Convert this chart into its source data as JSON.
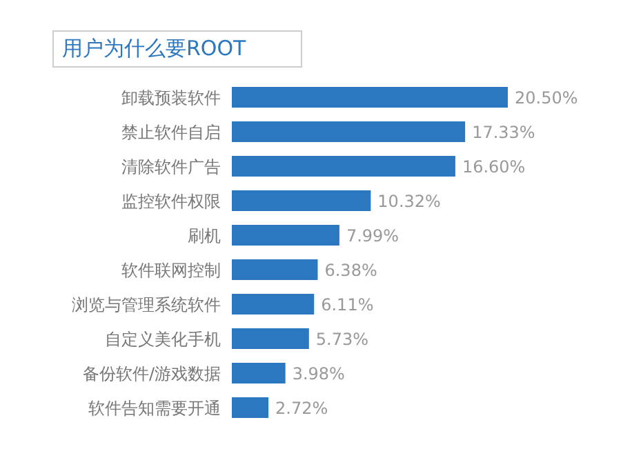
{
  "chart_data": {
    "type": "bar",
    "orientation": "horizontal",
    "title": "用户为什么要ROOT",
    "categories": [
      "卸载预装软件",
      "禁止软件自启",
      "清除软件广告",
      "监控软件权限",
      "刷机",
      "软件联网控制",
      "浏览与管理系统软件",
      "自定义美化手机",
      "备份软件/游戏数据",
      "软件告知需要开通"
    ],
    "values": [
      20.5,
      17.33,
      16.6,
      10.32,
      7.99,
      6.38,
      6.11,
      5.73,
      3.98,
      2.72
    ],
    "value_labels": [
      "20.50%",
      "17.33%",
      "16.60%",
      "10.32%",
      "7.99%",
      "6.38%",
      "6.11%",
      "5.73%",
      "3.98%",
      "2.72%"
    ],
    "color": "#2b78c0",
    "grid": false,
    "legend": false
  }
}
